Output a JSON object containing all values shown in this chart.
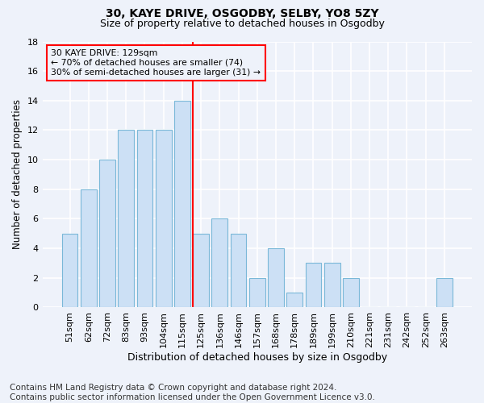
{
  "title1": "30, KAYE DRIVE, OSGODBY, SELBY, YO8 5ZY",
  "title2": "Size of property relative to detached houses in Osgodby",
  "xlabel": "Distribution of detached houses by size in Osgodby",
  "ylabel": "Number of detached properties",
  "bar_labels": [
    "51sqm",
    "62sqm",
    "72sqm",
    "83sqm",
    "93sqm",
    "104sqm",
    "115sqm",
    "125sqm",
    "136sqm",
    "146sqm",
    "157sqm",
    "168sqm",
    "178sqm",
    "189sqm",
    "199sqm",
    "210sqm",
    "221sqm",
    "231sqm",
    "242sqm",
    "252sqm",
    "263sqm"
  ],
  "bar_values": [
    5,
    8,
    10,
    12,
    12,
    12,
    14,
    5,
    6,
    5,
    2,
    4,
    1,
    3,
    3,
    2,
    0,
    0,
    0,
    0,
    2
  ],
  "bar_color": "#cce0f5",
  "bar_edge_color": "#7ab8d8",
  "property_label": "30 KAYE DRIVE: 129sqm",
  "annotation_line1": "← 70% of detached houses are smaller (74)",
  "annotation_line2": "30% of semi-detached houses are larger (31) →",
  "vline_color": "red",
  "vline_bar_index": 7,
  "annotation_box_color": "red",
  "background_color": "#eef2fa",
  "grid_color": "white",
  "ylim": [
    0,
    18
  ],
  "yticks": [
    0,
    2,
    4,
    6,
    8,
    10,
    12,
    14,
    16,
    18
  ],
  "footer": "Contains HM Land Registry data © Crown copyright and database right 2024.\nContains public sector information licensed under the Open Government Licence v3.0.",
  "footer_fontsize": 7.5,
  "title1_fontsize": 10,
  "title2_fontsize": 9
}
